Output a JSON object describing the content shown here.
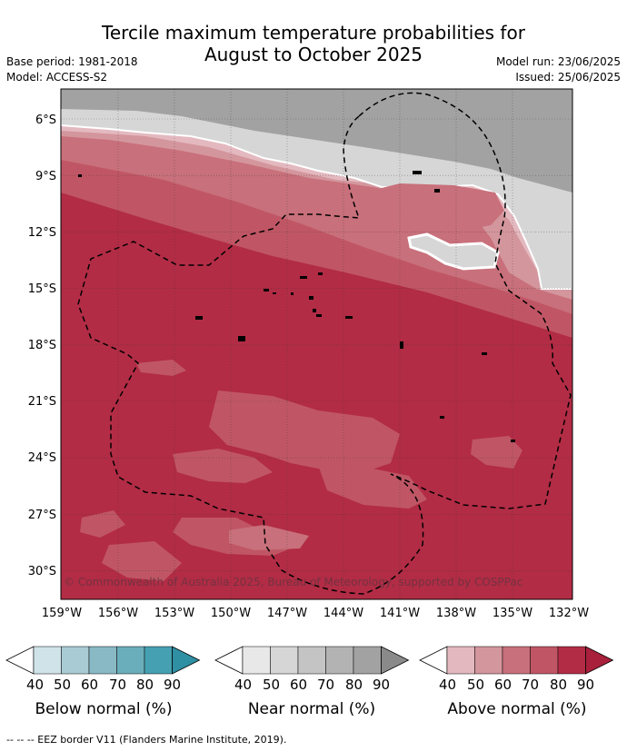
{
  "header": {
    "title_line1": "Tercile maximum temperature probabilities for",
    "title_line2": "August to October 2025",
    "base_period": "Base period: 1981-2018",
    "model": "Model: ACCESS-S2",
    "model_run": "Model run: 23/06/2025",
    "issued": "Issued: 25/06/2025"
  },
  "map": {
    "lat_labels": [
      "6°S",
      "9°S",
      "12°S",
      "15°S",
      "18°S",
      "21°S",
      "24°S",
      "27°S",
      "30°S"
    ],
    "lon_labels": [
      "159°W",
      "156°W",
      "153°W",
      "150°W",
      "147°W",
      "144°W",
      "141°W",
      "138°W",
      "135°W",
      "132°W"
    ],
    "copyright": "© Commonwealth of Australia 2025, Bureau of Meteorology, supported by COSPPac"
  },
  "legend": {
    "below": {
      "title": "Below normal (%)",
      "ticks": [
        "40",
        "50",
        "60",
        "70",
        "80",
        "90"
      ],
      "colors": [
        "#ffffff",
        "#cfe3e9",
        "#a9ccd4",
        "#89b9c5",
        "#6aaebb",
        "#45a0b1",
        "#2f8fa3"
      ]
    },
    "near": {
      "title": "Near normal (%)",
      "ticks": [
        "40",
        "50",
        "60",
        "70",
        "80",
        "90"
      ],
      "colors": [
        "#ffffff",
        "#e8e8e8",
        "#d6d6d6",
        "#c4c4c4",
        "#b3b3b3",
        "#a2a2a2",
        "#8a8a8a"
      ]
    },
    "above": {
      "title": "Above normal (%)",
      "ticks": [
        "40",
        "50",
        "60",
        "70",
        "80",
        "90"
      ],
      "colors": [
        "#ffffff",
        "#e3b9bf",
        "#d4969d",
        "#c8707b",
        "#c05665",
        "#b22c45",
        "#a8203c"
      ]
    }
  },
  "footer": {
    "eez_note": "-- -- -- EEZ border V11 (Flanders Marine Institute, 2019)."
  }
}
